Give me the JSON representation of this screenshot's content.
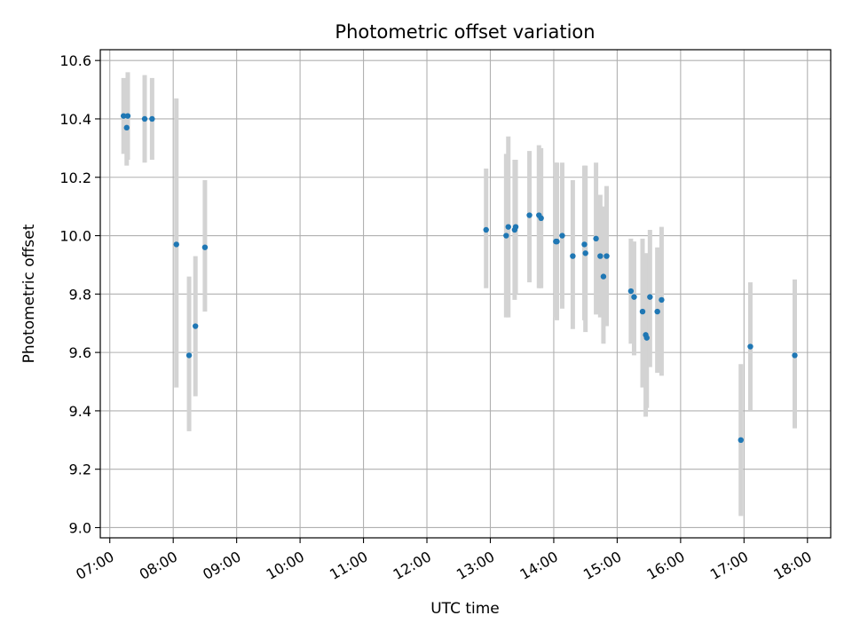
{
  "chart_data": {
    "type": "scatter",
    "title": "Photometric offset variation",
    "xlabel": "UTC time",
    "ylabel": "Photometric offset",
    "x_ticks": [
      "07:00",
      "08:00",
      "09:00",
      "10:00",
      "11:00",
      "12:00",
      "13:00",
      "14:00",
      "15:00",
      "16:00",
      "17:00",
      "18:00"
    ],
    "y_ticks": [
      "9.0",
      "9.2",
      "9.4",
      "9.6",
      "9.8",
      "10.0",
      "10.2",
      "10.4",
      "10.6"
    ],
    "xlim": [
      "06:51",
      "18:22"
    ],
    "ylim": [
      8.965,
      10.637
    ],
    "grid": true,
    "colors": {
      "point": "#1f77b4",
      "errorbar": "#d3d3d3",
      "grid": "#b0b0b0"
    },
    "points": [
      {
        "x": "07:13",
        "y": 10.41,
        "lo": 10.28,
        "hi": 10.54
      },
      {
        "x": "07:16",
        "y": 10.37,
        "lo": 10.24,
        "hi": 10.5
      },
      {
        "x": "07:17",
        "y": 10.41,
        "lo": 10.26,
        "hi": 10.56
      },
      {
        "x": "07:33",
        "y": 10.4,
        "lo": 10.25,
        "hi": 10.55
      },
      {
        "x": "07:40",
        "y": 10.4,
        "lo": 10.26,
        "hi": 10.54
      },
      {
        "x": "08:03",
        "y": 9.97,
        "lo": 9.48,
        "hi": 10.47
      },
      {
        "x": "08:15",
        "y": 9.59,
        "lo": 9.33,
        "hi": 9.86
      },
      {
        "x": "08:21",
        "y": 9.69,
        "lo": 9.45,
        "hi": 9.93
      },
      {
        "x": "08:30",
        "y": 9.96,
        "lo": 9.74,
        "hi": 10.19
      },
      {
        "x": "12:56",
        "y": 10.02,
        "lo": 9.82,
        "hi": 10.23
      },
      {
        "x": "13:15",
        "y": 10.0,
        "lo": 9.72,
        "hi": 10.28
      },
      {
        "x": "13:17",
        "y": 10.03,
        "lo": 9.72,
        "hi": 10.34
      },
      {
        "x": "13:23",
        "y": 10.02,
        "lo": 9.78,
        "hi": 10.26
      },
      {
        "x": "13:24",
        "y": 10.03,
        "lo": 9.8,
        "hi": 10.26
      },
      {
        "x": "13:37",
        "y": 10.07,
        "lo": 9.84,
        "hi": 10.29
      },
      {
        "x": "13:46",
        "y": 10.07,
        "lo": 9.82,
        "hi": 10.31
      },
      {
        "x": "13:48",
        "y": 10.06,
        "lo": 9.82,
        "hi": 10.3
      },
      {
        "x": "14:02",
        "y": 9.98,
        "lo": 9.72,
        "hi": 10.25
      },
      {
        "x": "14:03",
        "y": 9.98,
        "lo": 9.71,
        "hi": 10.25
      },
      {
        "x": "14:08",
        "y": 10.0,
        "lo": 9.75,
        "hi": 10.25
      },
      {
        "x": "14:18",
        "y": 9.93,
        "lo": 9.68,
        "hi": 10.19
      },
      {
        "x": "14:29",
        "y": 9.97,
        "lo": 9.71,
        "hi": 10.24
      },
      {
        "x": "14:30",
        "y": 9.94,
        "lo": 9.67,
        "hi": 10.24
      },
      {
        "x": "14:40",
        "y": 9.99,
        "lo": 9.73,
        "hi": 10.25
      },
      {
        "x": "14:44",
        "y": 9.93,
        "lo": 9.72,
        "hi": 10.14
      },
      {
        "x": "14:47",
        "y": 9.86,
        "lo": 9.63,
        "hi": 10.1
      },
      {
        "x": "14:50",
        "y": 9.93,
        "lo": 9.69,
        "hi": 10.17
      },
      {
        "x": "15:13",
        "y": 9.81,
        "lo": 9.63,
        "hi": 9.99
      },
      {
        "x": "15:16",
        "y": 9.79,
        "lo": 9.59,
        "hi": 9.98
      },
      {
        "x": "15:24",
        "y": 9.74,
        "lo": 9.48,
        "hi": 9.99
      },
      {
        "x": "15:27",
        "y": 9.66,
        "lo": 9.38,
        "hi": 9.94
      },
      {
        "x": "15:28",
        "y": 9.65,
        "lo": 9.41,
        "hi": 9.89
      },
      {
        "x": "15:31",
        "y": 9.79,
        "lo": 9.55,
        "hi": 10.02
      },
      {
        "x": "15:38",
        "y": 9.74,
        "lo": 9.53,
        "hi": 9.96
      },
      {
        "x": "15:42",
        "y": 9.78,
        "lo": 9.52,
        "hi": 10.03
      },
      {
        "x": "16:57",
        "y": 9.3,
        "lo": 9.04,
        "hi": 9.56
      },
      {
        "x": "17:06",
        "y": 9.62,
        "lo": 9.4,
        "hi": 9.84
      },
      {
        "x": "17:48",
        "y": 9.59,
        "lo": 9.34,
        "hi": 9.85
      }
    ]
  }
}
